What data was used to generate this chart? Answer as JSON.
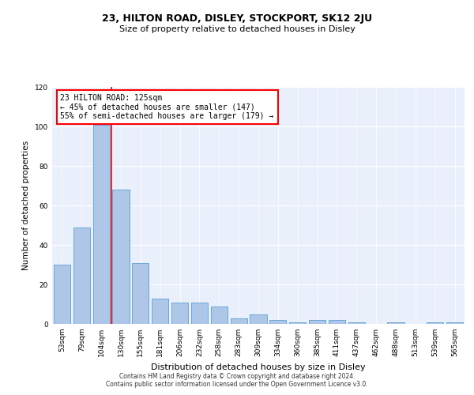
{
  "title": "23, HILTON ROAD, DISLEY, STOCKPORT, SK12 2JU",
  "subtitle": "Size of property relative to detached houses in Disley",
  "xlabel": "Distribution of detached houses by size in Disley",
  "ylabel": "Number of detached properties",
  "bar_labels": [
    "53sqm",
    "79sqm",
    "104sqm",
    "130sqm",
    "155sqm",
    "181sqm",
    "206sqm",
    "232sqm",
    "258sqm",
    "283sqm",
    "309sqm",
    "334sqm",
    "360sqm",
    "385sqm",
    "411sqm",
    "437sqm",
    "462sqm",
    "488sqm",
    "513sqm",
    "539sqm",
    "565sqm"
  ],
  "bar_values": [
    30,
    49,
    101,
    68,
    31,
    13,
    11,
    11,
    9,
    3,
    5,
    2,
    1,
    2,
    2,
    1,
    0,
    1,
    0,
    1,
    1
  ],
  "bar_color": "#aec6e8",
  "bar_edge_color": "#5a9fd4",
  "annotation_text": "23 HILTON ROAD: 125sqm\n← 45% of detached houses are smaller (147)\n55% of semi-detached houses are larger (179) →",
  "annotation_box_color": "white",
  "annotation_box_edge_color": "red",
  "red_line_bar_index": 2,
  "ylim": [
    0,
    120
  ],
  "yticks": [
    0,
    20,
    40,
    60,
    80,
    100,
    120
  ],
  "background_color": "#eaf0fb",
  "title_fontsize": 9,
  "subtitle_fontsize": 8,
  "ylabel_fontsize": 7.5,
  "xlabel_fontsize": 8,
  "tick_fontsize": 6.5,
  "footer1": "Contains HM Land Registry data © Crown copyright and database right 2024.",
  "footer2": "Contains public sector information licensed under the Open Government Licence v3.0.",
  "footer_fontsize": 5.5
}
